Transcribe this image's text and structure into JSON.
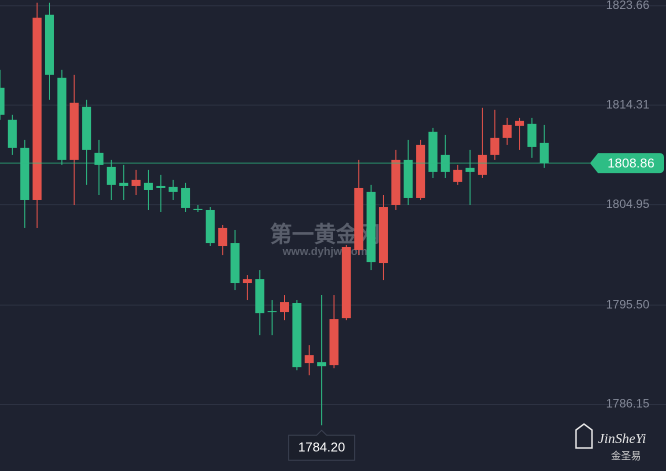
{
  "chart_data": {
    "type": "candlestick",
    "open": [
      1815.94,
      1812.93,
      1810.29,
      1805.39,
      1822.81,
      1816.88,
      1809.16,
      1814.15,
      1809.82,
      1808.5,
      1807.0,
      1806.71,
      1807.0,
      1806.71,
      1806.62,
      1806.52,
      1804.55,
      1804.45,
      1801.06,
      1801.34,
      1797.58,
      1797.95,
      1794.94,
      1794.85,
      1795.7,
      1790.05,
      1790.14,
      1789.86,
      1794.28,
      1800.69,
      1806.15,
      1799.46,
      1804.92,
      1809.16,
      1805.58,
      1811.8,
      1809.63,
      1807.09,
      1808.41,
      1807.75,
      1809.63,
      1811.23,
      1812.36,
      1812.55,
      1810.76
    ],
    "high": [
      1817.63,
      1813.4,
      1811.04,
      1823.94,
      1823.94,
      1817.63,
      1817.16,
      1814.81,
      1811.04,
      1809.16,
      1808.69,
      1808.22,
      1808.22,
      1807.75,
      1807.28,
      1807.0,
      1804.92,
      1804.73,
      1803.04,
      1802.57,
      1798.33,
      1798.8,
      1795.98,
      1796.45,
      1795.98,
      1791.74,
      1796.45,
      1796.45,
      1801.16,
      1809.16,
      1806.81,
      1805.86,
      1810.1,
      1811.04,
      1811.04,
      1812.17,
      1811.51,
      1808.69,
      1810.1,
      1814.06,
      1813.87,
      1813.11,
      1813.11,
      1813.11,
      1812.45
    ],
    "low": [
      1812.93,
      1809.63,
      1802.76,
      1802.76,
      1814.81,
      1808.69,
      1804.92,
      1806.81,
      1805.86,
      1805.39,
      1805.39,
      1805.86,
      1804.45,
      1804.26,
      1805.39,
      1804.26,
      1804.26,
      1801.06,
      1800.21,
      1796.92,
      1795.98,
      1792.68,
      1792.68,
      1794.09,
      1789.38,
      1788.91,
      1784.2,
      1789.57,
      1794.09,
      1800.21,
      1798.8,
      1797.86,
      1804.45,
      1804.92,
      1805.39,
      1807.46,
      1807.46,
      1806.81,
      1804.92,
      1807.46,
      1809.16,
      1810.57,
      1810.1,
      1809.35,
      1808.41
    ],
    "close": [
      1813.4,
      1810.29,
      1805.39,
      1822.53,
      1817.16,
      1809.16,
      1814.53,
      1810.1,
      1808.69,
      1806.81,
      1806.71,
      1807.28,
      1806.33,
      1806.52,
      1806.15,
      1804.64,
      1804.45,
      1801.34,
      1802.76,
      1797.58,
      1797.95,
      1794.75,
      1794.85,
      1795.79,
      1789.67,
      1790.8,
      1789.76,
      1794.19,
      1800.97,
      1806.52,
      1799.55,
      1804.73,
      1809.16,
      1805.58,
      1810.57,
      1808.03,
      1808.03,
      1808.22,
      1808.03,
      1809.63,
      1811.23,
      1812.45,
      1812.83,
      1810.38,
      1808.86
    ],
    "up_color": "#e5534b",
    "down_color": "#2ebd85",
    "ylim": [
      1779.9,
      1824.2
    ],
    "yticks": [
      1823.66,
      1814.31,
      1804.95,
      {
        "value": 1795.5,
        "label": "1795.50"
      },
      1786.15
    ],
    "grid": true,
    "last_price": 1808.86,
    "low_marker": {
      "value": 1784.2,
      "label": "1784.20"
    },
    "watermark": {
      "title": "第一黄金网",
      "url": "www.dyhjw.com"
    },
    "logo": {
      "name": "JinSheYi",
      "subtitle": "金圣易"
    }
  }
}
